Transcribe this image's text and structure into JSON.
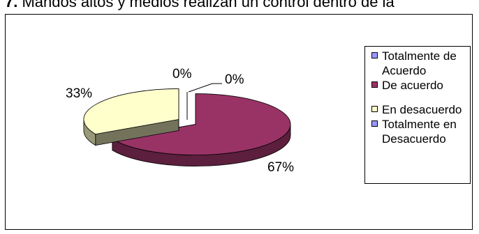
{
  "title": {
    "number": "7.",
    "text": "Mandos altos y medios realizan un control dentro de la"
  },
  "chart_data": {
    "type": "pie",
    "title": "7. Mandos altos y medios realizan un control dentro de la",
    "categories": [
      "Totalmente de Acuerdo",
      "De acuerdo",
      "En desacuerdo",
      "Totalmente en Desacuerdo"
    ],
    "values": [
      0,
      67,
      33,
      0
    ],
    "data_labels": [
      "0%",
      "67%",
      "33%",
      "0%"
    ],
    "colors": [
      "#9999ff",
      "#993366",
      "#ffffcc",
      "#9999ff"
    ],
    "legend_placement": "right",
    "exploded": true,
    "style": "3d"
  },
  "legend": {
    "items": [
      {
        "label": "Totalmente de Acuerdo",
        "color": "#9999ff"
      },
      {
        "label": "De acuerdo",
        "color": "#993366"
      },
      {
        "label": "En desacuerdo",
        "color": "#ffffcc"
      },
      {
        "label": "Totalmente en Desacuerdo",
        "color": "#9999ff"
      }
    ]
  }
}
